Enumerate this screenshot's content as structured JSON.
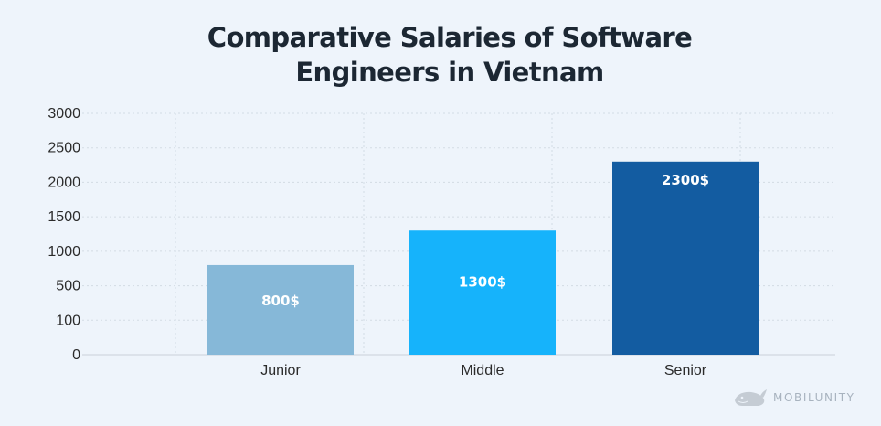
{
  "chart_data": {
    "type": "bar",
    "title_lines": [
      "Comparative Salaries of Software",
      "Engineers in Vietnam"
    ],
    "categories": [
      "Junior",
      "Middle",
      "Senior"
    ],
    "values": [
      800,
      1300,
      2300
    ],
    "data_labels": [
      "800$",
      "1300$",
      "2300$"
    ],
    "bar_colors": [
      "#86b8d8",
      "#16b3fb",
      "#135ca1"
    ],
    "y_tick_labels": [
      "0",
      "100",
      "500",
      "1000",
      "1500",
      "2000",
      "2500",
      "3000"
    ],
    "xlabel": "",
    "ylabel": "",
    "grid": true,
    "legend": "none"
  },
  "brand": {
    "name": "MOBILUNITY",
    "logo_icon": "whale-logo-icon"
  },
  "colors": {
    "background": "#eef4fb",
    "grid": "#d3dbe4",
    "title": "#1c2733"
  }
}
